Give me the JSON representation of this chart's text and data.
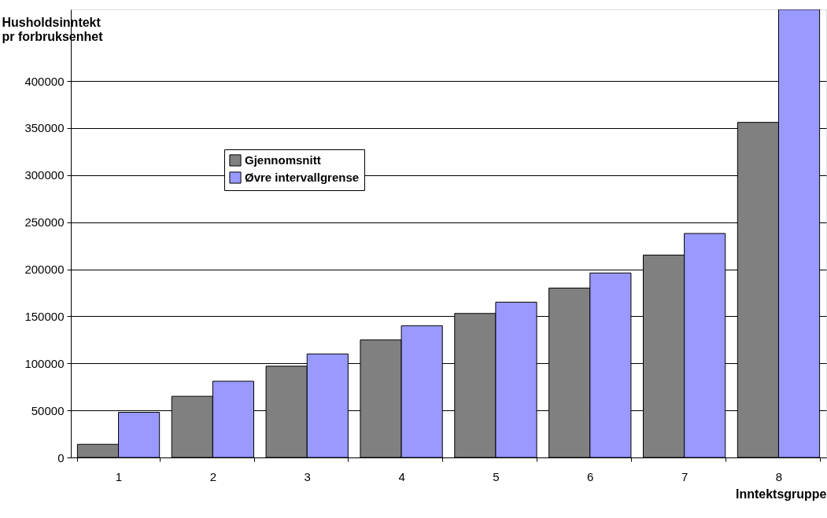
{
  "chart_data": {
    "type": "bar",
    "xlabel": "Inntektsgruppe",
    "ylabel": "Husholdsinntekt\npr forbruksenhet",
    "categories": [
      "1",
      "2",
      "3",
      "4",
      "5",
      "6",
      "7",
      "8"
    ],
    "series": [
      {
        "name": "Gjennomsnitt",
        "color": "#808080",
        "values": [
          14000,
          65000,
          97000,
          125000,
          153000,
          180000,
          215000,
          356000
        ]
      },
      {
        "name": "Øvre intervallgrense",
        "color": "#9999ff",
        "values": [
          48000,
          81000,
          110000,
          140000,
          165000,
          196000,
          238000,
          476000
        ]
      }
    ],
    "ylim": [
      0,
      476000
    ],
    "yticks": [
      0,
      50000,
      100000,
      150000,
      200000,
      250000,
      300000,
      350000,
      400000
    ],
    "grid": "y",
    "legend": "top left"
  }
}
